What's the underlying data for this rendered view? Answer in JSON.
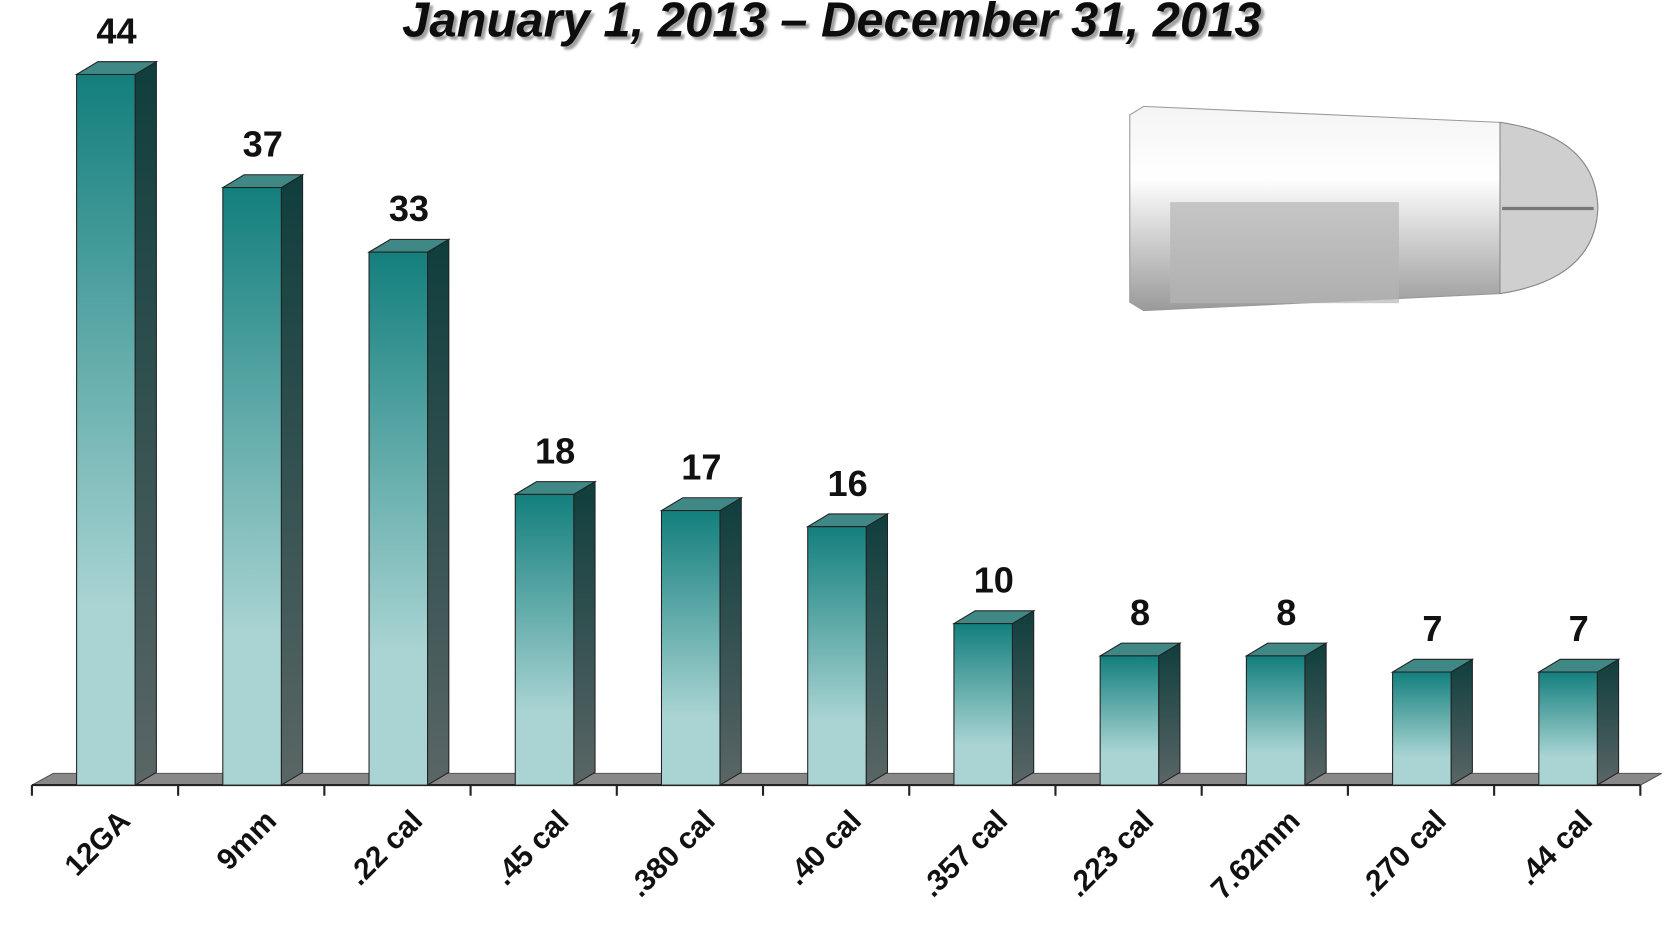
{
  "chart_data": {
    "type": "bar3d",
    "title": "January 1, 2013 – December 31, 2013",
    "categories": [
      "12GA",
      "9mm",
      ".22 cal",
      ".45 cal",
      ".380 cal",
      ".40 cal",
      ".357 cal",
      ".223 cal",
      "7.62mm",
      ".270 cal",
      ".44 cal"
    ],
    "values": [
      44,
      37,
      33,
      18,
      17,
      16,
      10,
      8,
      8,
      7,
      7
    ],
    "color": "#137f7d",
    "ylim": [
      0,
      44
    ]
  }
}
